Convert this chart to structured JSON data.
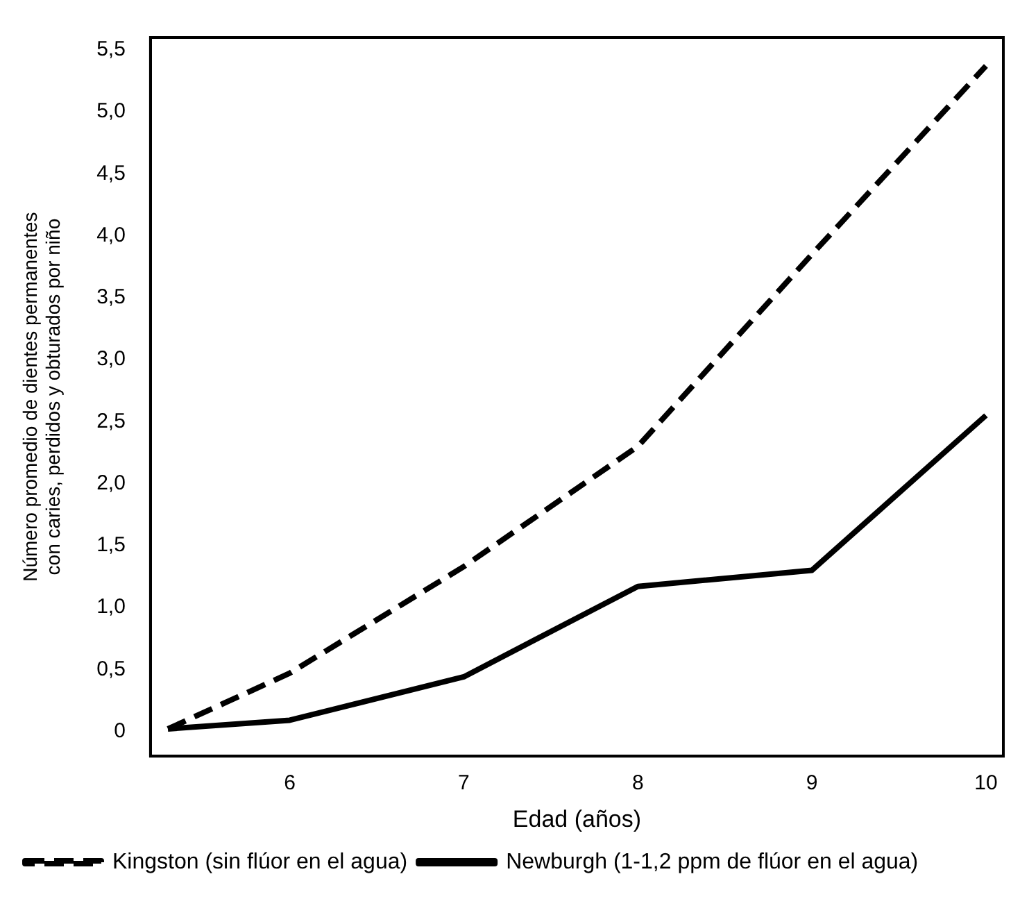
{
  "chart_data": {
    "type": "line",
    "xlabel": "Edad (años)",
    "ylabel": "Número promedio de dientes permanentes\ncon caries, perdidos y obturados por niño",
    "x": [
      5.3,
      6,
      7,
      8,
      9,
      10
    ],
    "series": [
      {
        "name": "Kingston (sin flúor en el agua)",
        "color": "#000000",
        "line_style": "dashed",
        "values": [
          0.02,
          0.47,
          1.33,
          2.3,
          3.85,
          5.37
        ]
      },
      {
        "name": "Newburgh (1-1,2 ppm de flúor en el agua)",
        "color": "#000000",
        "line_style": "solid",
        "values": [
          0.02,
          0.09,
          0.44,
          1.17,
          1.3,
          2.55
        ]
      }
    ],
    "xlim": [
      5.2,
      10.1
    ],
    "xticks": [
      6,
      7,
      8,
      9,
      10
    ],
    "ylim": [
      -0.2,
      5.6
    ],
    "yticks": [
      0,
      {
        "value": 0.5,
        "label": "0,5"
      },
      {
        "value": 1,
        "label": "1,0"
      },
      {
        "value": 1.5,
        "label": "1,5"
      },
      {
        "value": 2,
        "label": "2,0"
      },
      {
        "value": 2.5,
        "label": "2,5"
      },
      {
        "value": 3,
        "label": "3,0"
      },
      {
        "value": 3.5,
        "label": "3,5"
      },
      {
        "value": 4,
        "label": "4,0"
      },
      {
        "value": 4.5,
        "label": "4,5"
      },
      {
        "value": 5,
        "label": "5,0"
      },
      {
        "value": 5.5,
        "label": "5,5"
      }
    ],
    "grid": false,
    "legend": "bottom left",
    "marker": "none"
  }
}
